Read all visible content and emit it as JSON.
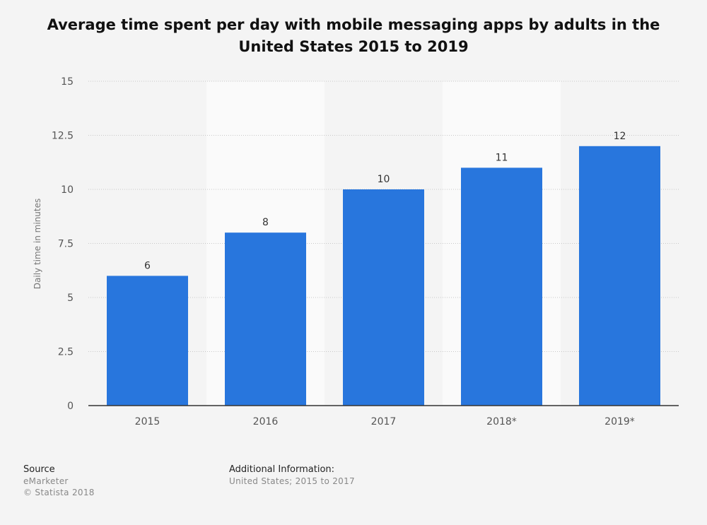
{
  "chart_data": {
    "type": "bar",
    "title": "Average time spent per day with mobile messaging apps by adults in the United States 2015 to 2019",
    "ylabel": "Daily time in minutes",
    "xlabel": "",
    "categories": [
      "2015",
      "2016",
      "2017",
      "2018*",
      "2019*"
    ],
    "values": [
      6,
      8,
      10,
      11,
      12
    ],
    "ylim": [
      0,
      15
    ],
    "yticks": [
      0,
      2.5,
      5,
      7.5,
      10,
      12.5,
      15
    ],
    "ytick_labels": [
      "0",
      "2.5",
      "5",
      "7.5",
      "10",
      "12.5",
      "15"
    ],
    "bar_color": "#2876dd",
    "grid": true,
    "legend": "none"
  },
  "footer": {
    "source_heading": "Source",
    "source_name": "eMarketer",
    "copyright": "© Statista 2018",
    "additional_heading": "Additional Information:",
    "additional_text": "United States; 2015 to 2017"
  }
}
